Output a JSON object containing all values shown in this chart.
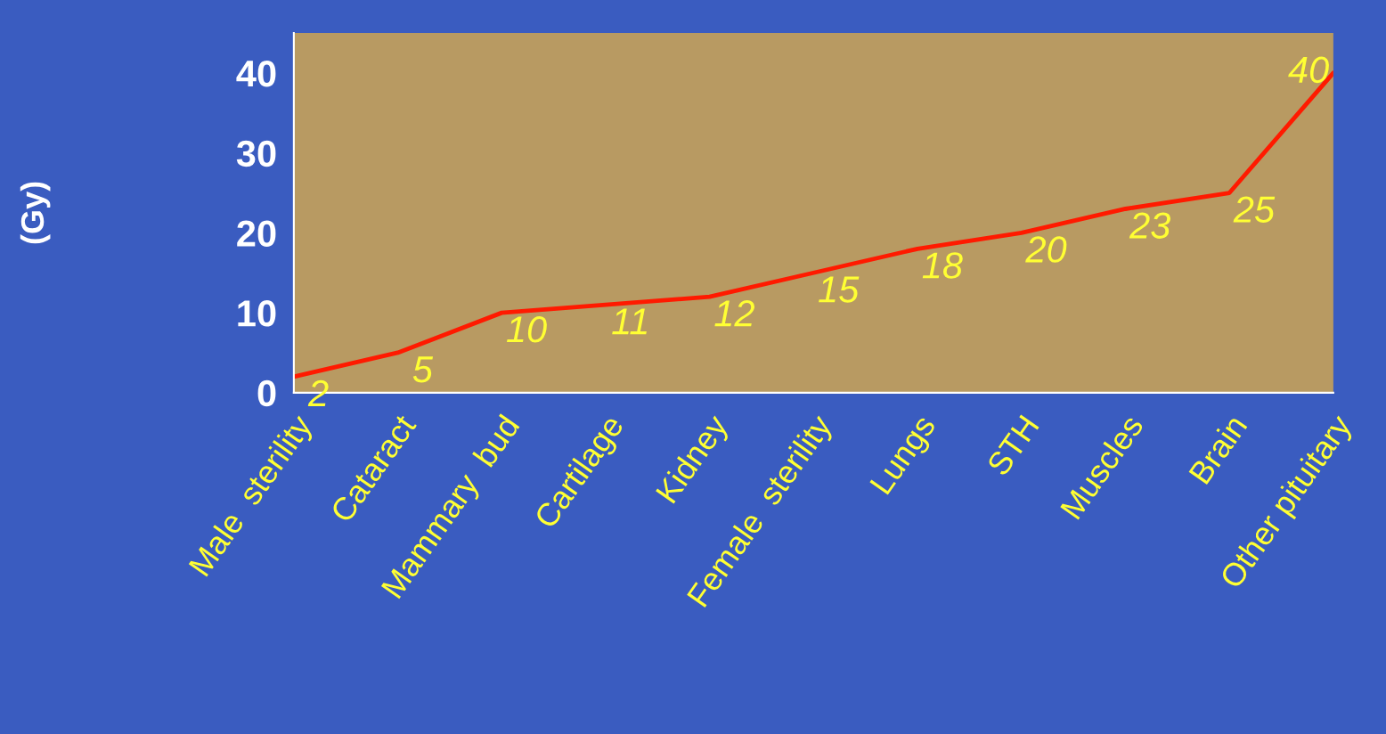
{
  "chart_data": {
    "type": "line",
    "ylabel": "(Gy)",
    "categories": [
      "Male  sterility",
      "Cataract",
      "Mammary  bud",
      "Cartilage",
      "Kidney",
      "Female  sterility",
      "Lungs",
      "STH",
      "Muscles",
      "Brain",
      "Other pituitary"
    ],
    "series": [
      {
        "color": "#ff1a00",
        "values": [
          2,
          5,
          10,
          11,
          12,
          15,
          18,
          20,
          23,
          25,
          40
        ]
      }
    ],
    "ylim": [
      0,
      45
    ],
    "yticks": [
      0,
      10,
      20,
      30,
      40
    ],
    "data_labels": true,
    "grid": false,
    "marker": "none",
    "line_style": "solid"
  }
}
